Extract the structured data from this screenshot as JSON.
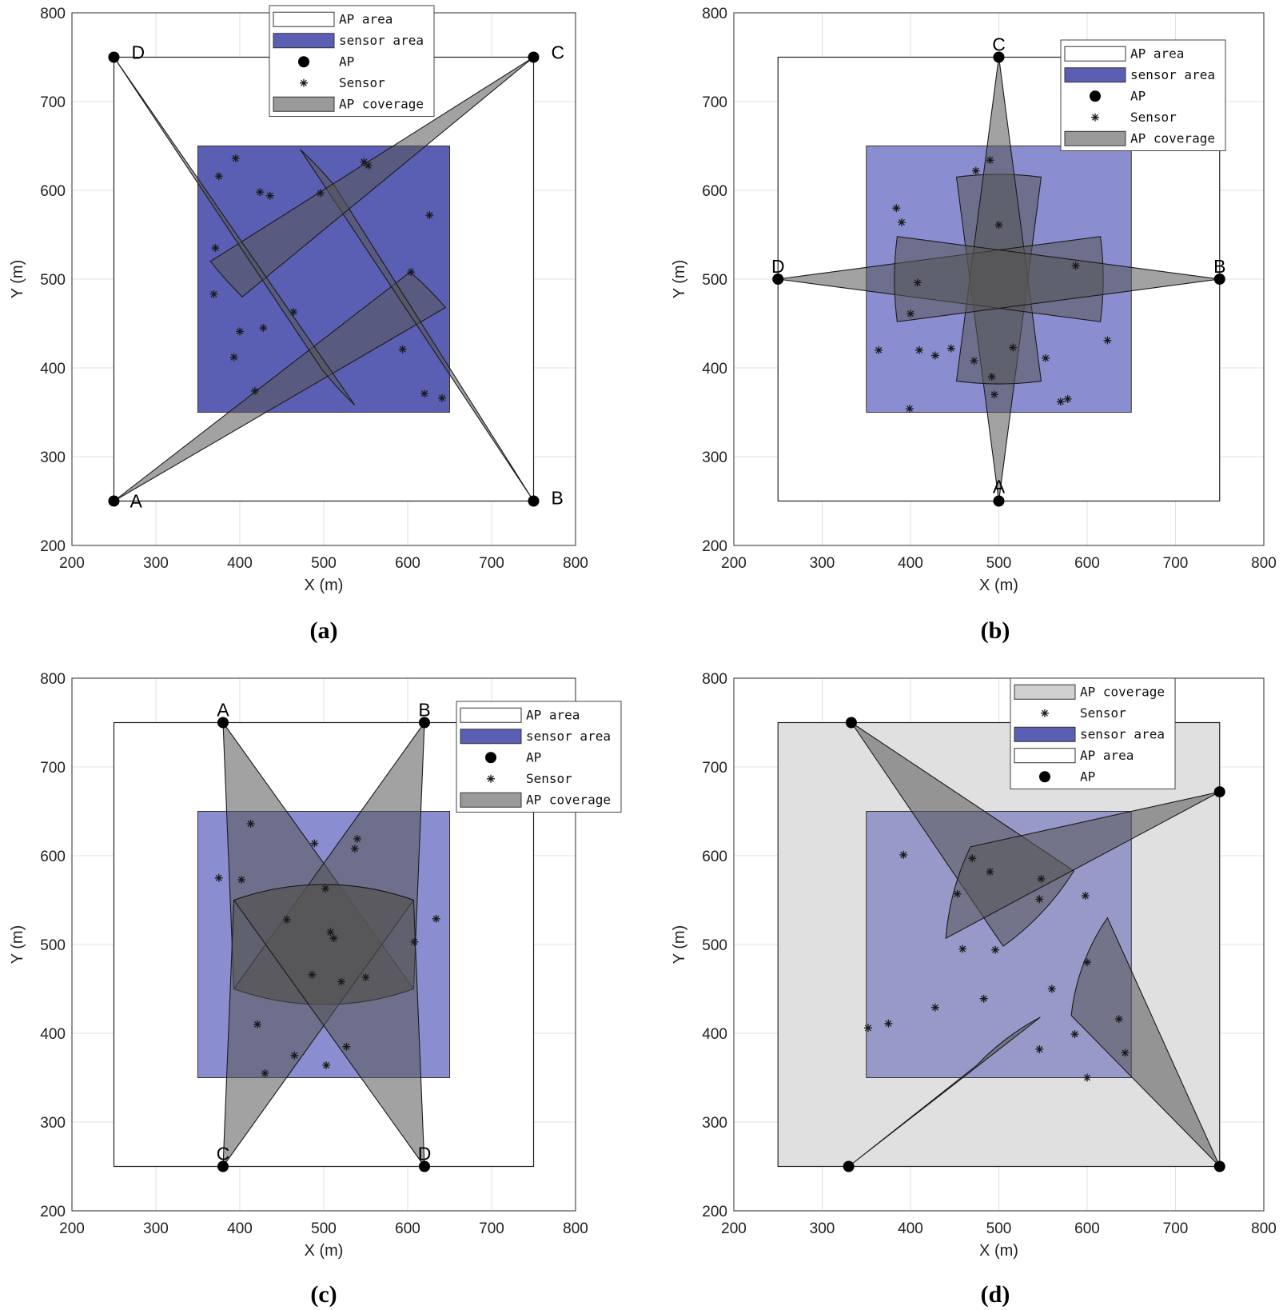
{
  "colors": {
    "ap_area_fill": "#ffffff",
    "sensor_area_fill": "#5b5fb4",
    "sensor_area_fill_light": "#8a8ed0",
    "ap_coverage_fill": "#8c8c8c",
    "overlap_fill": "#2d2d55",
    "grid": "#e1e1e1",
    "axis": "#4d4d4d"
  },
  "chart_data": [
    {
      "id": "a",
      "type": "scatter",
      "caption": "(a)",
      "xlabel": "X (m)",
      "ylabel": "Y (m)",
      "xlim": [
        200,
        800
      ],
      "ylim": [
        200,
        800
      ],
      "xticks": [
        "200",
        "300",
        "400",
        "500",
        "600",
        "700",
        "800"
      ],
      "yticks": [
        "200",
        "300",
        "400",
        "500",
        "600",
        "700",
        "800"
      ],
      "grid": true,
      "legend_position": "top-center",
      "legend": [
        {
          "label": "AP area",
          "kind": "ap_area"
        },
        {
          "label": "sensor area",
          "kind": "sensor_area"
        },
        {
          "label": "AP",
          "kind": "ap"
        },
        {
          "label": "Sensor",
          "kind": "sensor"
        },
        {
          "label": "AP coverage",
          "kind": "coverage"
        }
      ],
      "ap_area": {
        "x": [
          250,
          750
        ],
        "y": [
          250,
          750
        ]
      },
      "sensor_area": {
        "x": [
          350,
          650
        ],
        "y": [
          350,
          650
        ]
      },
      "aps": [
        {
          "label": "A",
          "x": 250,
          "y": 250
        },
        {
          "label": "B",
          "x": 750,
          "y": 250
        },
        {
          "label": "C",
          "x": 750,
          "y": 750
        },
        {
          "label": "D",
          "x": 250,
          "y": 750
        }
      ],
      "coverage": [
        {
          "x": [
            250,
            603,
            645
          ],
          "y": [
            250,
            508,
            468
          ]
        },
        {
          "x": [
            750,
            513,
            472
          ],
          "y": [
            250,
            605,
            646
          ]
        },
        {
          "x": [
            750,
            403,
            365
          ],
          "y": [
            750,
            480,
            520
          ]
        },
        {
          "x": [
            250,
            498,
            537
          ],
          "y": [
            750,
            398,
            358
          ]
        }
      ],
      "sensors": {
        "x": [
          395,
          375,
          424,
          436,
          496,
          548,
          553,
          626,
          371,
          369,
          464,
          400,
          428,
          393,
          418,
          604,
          594,
          620,
          641
        ],
        "y": [
          636,
          616,
          598,
          594,
          597,
          632,
          628,
          572,
          535,
          483,
          463,
          441,
          445,
          412,
          374,
          508,
          421,
          371,
          366
        ]
      }
    },
    {
      "id": "b",
      "type": "scatter",
      "caption": "(b)",
      "xlabel": "X (m)",
      "ylabel": "Y (m)",
      "xlim": [
        200,
        800
      ],
      "ylim": [
        200,
        800
      ],
      "xticks": [
        "200",
        "300",
        "400",
        "500",
        "600",
        "700",
        "800"
      ],
      "yticks": [
        "200",
        "300",
        "400",
        "500",
        "600",
        "700",
        "800"
      ],
      "grid": true,
      "legend_position": "top-right",
      "legend": [
        {
          "label": "AP area",
          "kind": "ap_area"
        },
        {
          "label": "sensor area",
          "kind": "sensor_area"
        },
        {
          "label": "AP",
          "kind": "ap"
        },
        {
          "label": "Sensor",
          "kind": "sensor"
        },
        {
          "label": "AP coverage",
          "kind": "coverage"
        }
      ],
      "ap_area": {
        "x": [
          250,
          750
        ],
        "y": [
          250,
          750
        ]
      },
      "sensor_area": {
        "x": [
          350,
          650
        ],
        "y": [
          350,
          650
        ]
      },
      "aps": [
        {
          "label": "A",
          "x": 500,
          "y": 250
        },
        {
          "label": "B",
          "x": 750,
          "y": 500
        },
        {
          "label": "C",
          "x": 500,
          "y": 750
        },
        {
          "label": "D",
          "x": 250,
          "y": 500
        }
      ],
      "coverage": [
        {
          "x": [
            500,
            452,
            548
          ],
          "y": [
            250,
            615,
            615
          ]
        },
        {
          "x": [
            500,
            452,
            548
          ],
          "y": [
            750,
            385,
            385
          ]
        },
        {
          "x": [
            250,
            615,
            615
          ],
          "y": [
            500,
            548,
            452
          ]
        },
        {
          "x": [
            750,
            385,
            385
          ],
          "y": [
            500,
            548,
            452
          ]
        }
      ],
      "sensors": {
        "x": [
          490,
          474,
          384,
          390,
          408,
          400,
          364,
          410,
          428,
          446,
          472,
          492,
          500,
          516,
          553,
          570,
          578,
          587,
          623,
          399,
          495
        ],
        "y": [
          634,
          622,
          580,
          564,
          496,
          461,
          420,
          420,
          414,
          422,
          408,
          390,
          561,
          423,
          411,
          362,
          365,
          515,
          431,
          354,
          370
        ]
      }
    },
    {
      "id": "c",
      "type": "scatter",
      "caption": "(c)",
      "xlabel": "X (m)",
      "ylabel": "Y (m)",
      "xlim": [
        200,
        800
      ],
      "ylim": [
        200,
        800
      ],
      "xticks": [
        "200",
        "300",
        "400",
        "500",
        "600",
        "700",
        "800"
      ],
      "yticks": [
        "200",
        "300",
        "400",
        "500",
        "600",
        "700",
        "800"
      ],
      "grid": true,
      "legend_position": "top-right",
      "legend": [
        {
          "label": "AP area",
          "kind": "ap_area"
        },
        {
          "label": "sensor area",
          "kind": "sensor_area"
        },
        {
          "label": "AP",
          "kind": "ap"
        },
        {
          "label": "Sensor",
          "kind": "sensor"
        },
        {
          "label": "AP coverage",
          "kind": "coverage"
        }
      ],
      "ap_area": {
        "x": [
          250,
          750
        ],
        "y": [
          250,
          750
        ]
      },
      "sensor_area": {
        "x": [
          350,
          650
        ],
        "y": [
          350,
          650
        ]
      },
      "aps": [
        {
          "label": "A",
          "x": 380,
          "y": 750
        },
        {
          "label": "B",
          "x": 620,
          "y": 750
        },
        {
          "label": "C",
          "x": 380,
          "y": 250
        },
        {
          "label": "D",
          "x": 620,
          "y": 250
        }
      ],
      "coverage": [
        {
          "x": [
            380,
            393,
            607
          ],
          "y": [
            750,
            450,
            450
          ]
        },
        {
          "x": [
            620,
            607,
            393
          ],
          "y": [
            750,
            450,
            450
          ]
        },
        {
          "x": [
            380,
            393,
            607
          ],
          "y": [
            250,
            550,
            550
          ]
        },
        {
          "x": [
            620,
            607,
            393
          ],
          "y": [
            250,
            550,
            550
          ]
        }
      ],
      "sensors": {
        "x": [
          413,
          375,
          402,
          489,
          537,
          540,
          502,
          456,
          508,
          512,
          486,
          521,
          550,
          608,
          634,
          421,
          527,
          465,
          503,
          430
        ],
        "y": [
          636,
          575,
          573,
          614,
          608,
          619,
          563,
          528,
          514,
          507,
          466,
          458,
          463,
          503,
          529,
          410,
          385,
          375,
          364,
          355
        ]
      }
    },
    {
      "id": "d",
      "type": "scatter",
      "caption": "(d)",
      "xlabel": "X (m)",
      "ylabel": "Y (m)",
      "xlim": [
        200,
        800
      ],
      "ylim": [
        200,
        800
      ],
      "xticks": [
        "200",
        "300",
        "400",
        "500",
        "600",
        "700",
        "800"
      ],
      "yticks": [
        "200",
        "300",
        "400",
        "500",
        "600",
        "700",
        "800"
      ],
      "grid": true,
      "legend_position": "top-center",
      "legend": [
        {
          "label": "AP coverage",
          "kind": "coverage"
        },
        {
          "label": "Sensor",
          "kind": "sensor"
        },
        {
          "label": "sensor area",
          "kind": "sensor_area"
        },
        {
          "label": "AP area",
          "kind": "ap_area"
        },
        {
          "label": "AP",
          "kind": "ap"
        }
      ],
      "ap_area": {
        "x": [
          250,
          750
        ],
        "y": [
          250,
          750
        ]
      },
      "sensor_area": {
        "x": [
          350,
          650
        ],
        "y": [
          350,
          650
        ]
      },
      "aps": [
        {
          "label": "",
          "x": 333,
          "y": 750
        },
        {
          "label": "",
          "x": 750,
          "y": 672
        },
        {
          "label": "",
          "x": 750,
          "y": 250
        },
        {
          "label": "",
          "x": 330,
          "y": 250
        }
      ],
      "coverage": [
        {
          "x": [
            333,
            585,
            505
          ],
          "y": [
            750,
            583,
            498
          ]
        },
        {
          "x": [
            750,
            468,
            440
          ],
          "y": [
            672,
            610,
            507
          ]
        },
        {
          "x": [
            750,
            582,
            623
          ],
          "y": [
            250,
            420,
            530
          ]
        },
        {
          "x": [
            330,
            547,
            475
          ],
          "y": [
            250,
            418,
            364
          ]
        }
      ],
      "sensors": {
        "x": [
          392,
          453,
          470,
          490,
          548,
          546,
          598,
          459,
          496,
          560,
          600,
          428,
          483,
          352,
          375,
          586,
          636,
          643,
          546,
          600
        ],
        "y": [
          601,
          557,
          597,
          582,
          574,
          551,
          555,
          495,
          494,
          450,
          480,
          429,
          439,
          406,
          411,
          399,
          416,
          378,
          382,
          350
        ]
      }
    }
  ]
}
